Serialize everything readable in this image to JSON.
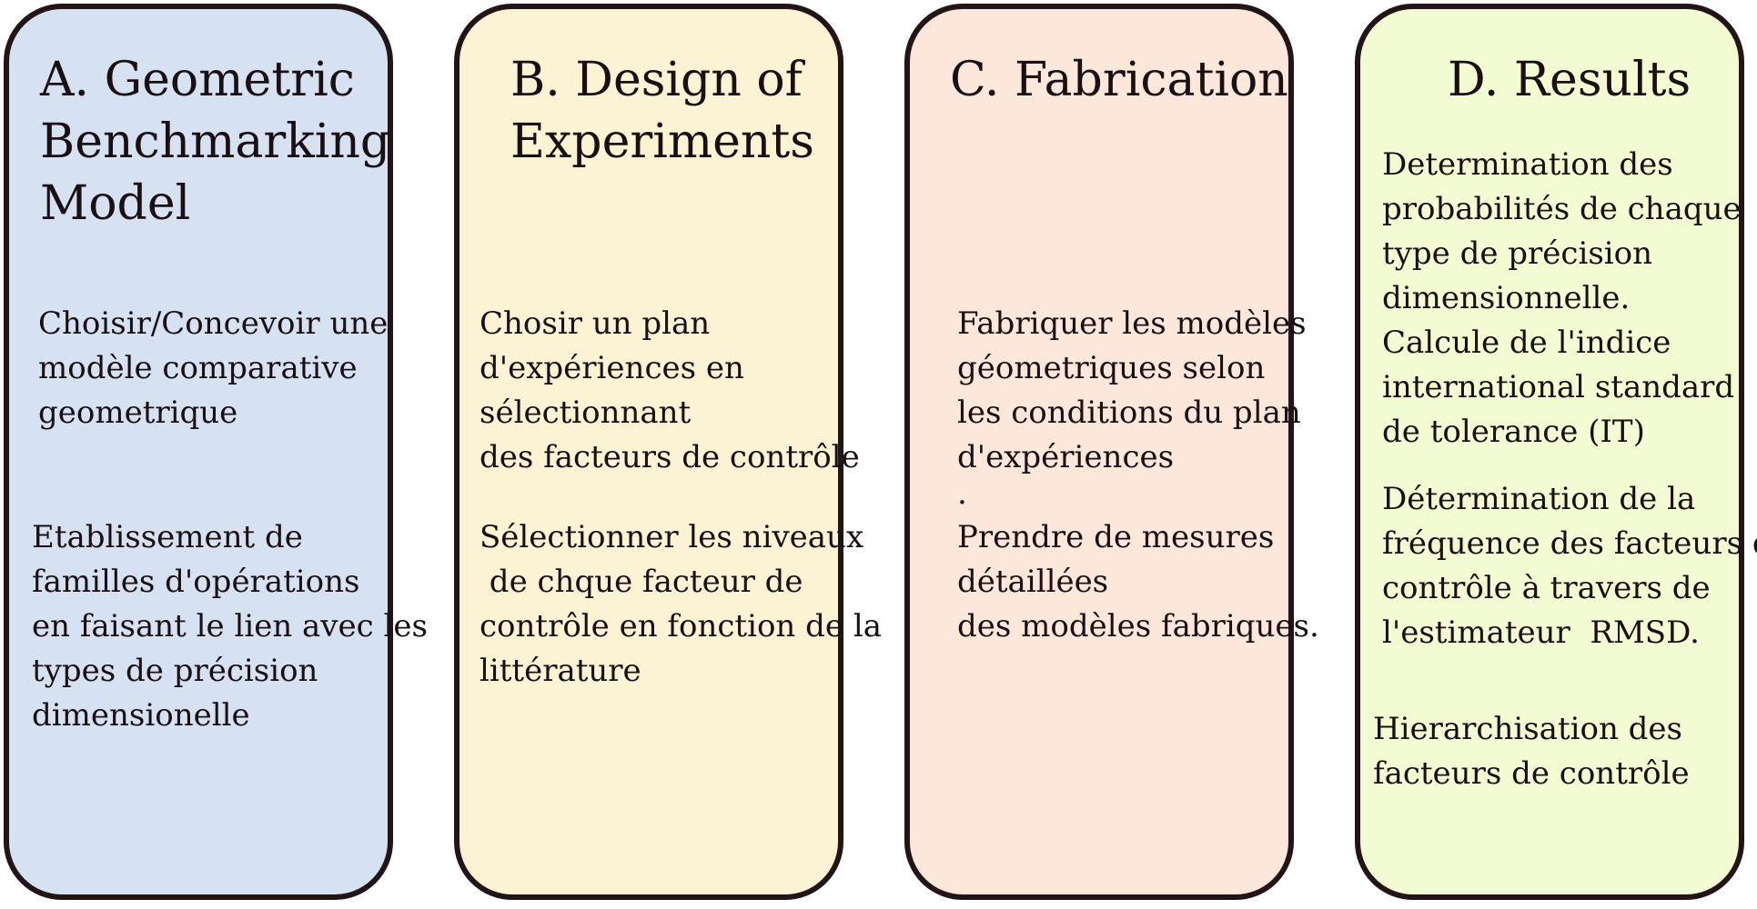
{
  "panels": [
    {
      "title": [
        "A. Geometric",
        "Benchmarking",
        "Model"
      ],
      "block1": [
        "Choisir/Concevoir une",
        "modèle comparative",
        "geometrique"
      ],
      "block2": [
        "Etablissement de",
        "familles d'opérations",
        "en faisant le lien avec les",
        "types de précision",
        "dimensionelle"
      ],
      "color": "#d6e1f2"
    },
    {
      "title": [
        "B. Design of",
        "Experiments"
      ],
      "block1": [
        "Chosir un plan",
        "d'expériences en",
        "sélectionnant",
        "des facteurs de contrôle"
      ],
      "block2": [
        "Sélectionner les niveaux",
        " de chque facteur de",
        "contrôle en fonction de la",
        "littérature"
      ],
      "color": "#fcf3d5"
    },
    {
      "title": [
        "C. Fabrication"
      ],
      "block1": [
        "Fabriquer les modèles",
        "géometriques selon",
        "les conditions du plan",
        "d'expériences",
        "."
      ],
      "block2": [
        "Prendre de mesures",
        "détaillées",
        "des modèles fabriques."
      ],
      "color": "#fde6da"
    },
    {
      "title": [
        "D. Results"
      ],
      "block1": [
        "Determination des",
        "probabilités de chaque",
        "type de précision",
        "dimensionnelle.",
        "Calcule de l'indice",
        "international standard",
        "de tolerance (IT)"
      ],
      "block2": [
        "Détermination de la",
        "fréquence des facteurs de",
        "contrôle à travers de",
        "l'estimateur  RMSD."
      ],
      "block3": [
        "Hierarchisation des",
        "facteurs de contrôle"
      ],
      "color": "#f3fbd2"
    }
  ],
  "border_color": "#231517"
}
